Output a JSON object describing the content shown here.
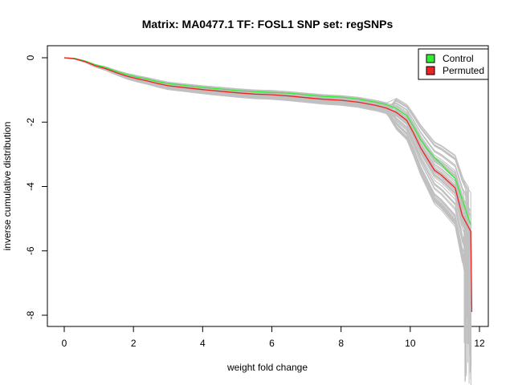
{
  "chart_data": {
    "type": "line",
    "title": "Matrix: MA0477.1 TF: FOSL1 SNP set: regSNPs",
    "xlabel": "weight fold change",
    "ylabel": "inverse cumulative distribution",
    "xlim": [
      0,
      12
    ],
    "ylim": [
      -8,
      0
    ],
    "x_ticks": [
      0,
      2,
      4,
      6,
      8,
      10,
      12
    ],
    "y_ticks": [
      0,
      -2,
      -4,
      -6,
      -8
    ],
    "grid": false,
    "legend": {
      "position": "top-right",
      "entries": [
        {
          "label": "Control",
          "color": "#33ee33"
        },
        {
          "label": "Permuted",
          "color": "#ee2222"
        }
      ]
    },
    "background_series_color": "#c0c0c0",
    "series": [
      {
        "name": "Control",
        "color": "#33ee33",
        "x": [
          0.0,
          0.3,
          0.6,
          0.9,
          1.2,
          1.5,
          1.8,
          2.1,
          2.4,
          2.7,
          3.0,
          3.5,
          4.0,
          4.5,
          5.0,
          5.5,
          6.0,
          6.5,
          7.0,
          7.5,
          8.0,
          8.5,
          9.0,
          9.3,
          9.6,
          9.9,
          10.1,
          10.3,
          10.5,
          10.7,
          10.9,
          11.1,
          11.3,
          11.5,
          11.75
        ],
        "y": [
          0.0,
          -0.02,
          -0.1,
          -0.22,
          -0.3,
          -0.42,
          -0.52,
          -0.6,
          -0.66,
          -0.74,
          -0.8,
          -0.86,
          -0.92,
          -0.97,
          -1.02,
          -1.05,
          -1.08,
          -1.1,
          -1.15,
          -1.2,
          -1.22,
          -1.28,
          -1.38,
          -1.45,
          -1.58,
          -1.8,
          -2.15,
          -2.55,
          -2.85,
          -3.1,
          -3.3,
          -3.55,
          -3.75,
          -4.4,
          -5.2
        ]
      },
      {
        "name": "Permuted",
        "color": "#ee2222",
        "x": [
          0.0,
          0.3,
          0.6,
          0.9,
          1.2,
          1.5,
          1.8,
          2.1,
          2.4,
          2.7,
          3.0,
          3.5,
          4.0,
          4.5,
          5.0,
          5.5,
          6.0,
          6.5,
          7.0,
          7.5,
          8.0,
          8.5,
          9.0,
          9.3,
          9.6,
          9.9,
          10.1,
          10.3,
          10.5,
          10.7,
          10.9,
          11.1,
          11.3,
          11.5,
          11.7,
          11.75,
          11.78
        ],
        "y": [
          0.0,
          -0.03,
          -0.12,
          -0.25,
          -0.34,
          -0.46,
          -0.57,
          -0.65,
          -0.72,
          -0.8,
          -0.87,
          -0.93,
          -0.99,
          -1.04,
          -1.09,
          -1.13,
          -1.15,
          -1.19,
          -1.24,
          -1.29,
          -1.32,
          -1.38,
          -1.48,
          -1.56,
          -1.7,
          -1.95,
          -2.35,
          -2.8,
          -3.15,
          -3.5,
          -3.65,
          -3.85,
          -4.05,
          -4.9,
          -5.3,
          -5.4,
          -7.9
        ]
      }
    ]
  }
}
